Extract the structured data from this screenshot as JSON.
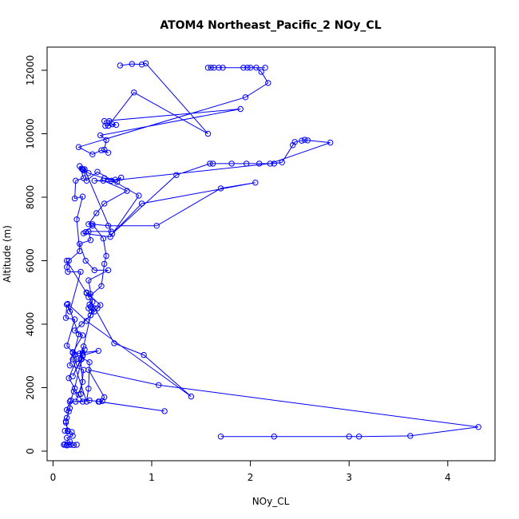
{
  "chart_data": {
    "type": "line",
    "title": "ATOM4 Northeast_Pacific_2 NOy_CL",
    "xlabel": "NOy_CL",
    "ylabel": "Altitude (m)",
    "xlim": [
      0,
      4.4
    ],
    "ylim": [
      0,
      12500
    ],
    "xticks": [
      0,
      1,
      2,
      3,
      4
    ],
    "yticks": [
      0,
      2000,
      4000,
      6000,
      8000,
      10000,
      12000
    ],
    "grid": false,
    "legend": "none",
    "color": "#0000ff",
    "marker": "open-circle",
    "series": [
      {
        "points": [
          [
            0.68,
            12150
          ],
          [
            0.8,
            12200
          ],
          [
            0.9,
            12180
          ],
          [
            0.94,
            12220
          ],
          [
            1.57,
            10000
          ],
          [
            0.82,
            11300
          ],
          [
            0.56,
            10250
          ],
          [
            0.57,
            10400
          ],
          [
            0.6,
            10300
          ],
          [
            0.64,
            10280
          ],
          [
            0.53,
            10250
          ],
          [
            0.52,
            10400
          ],
          [
            1.9,
            10780
          ],
          [
            0.48,
            9950
          ],
          [
            0.54,
            9800
          ],
          [
            0.52,
            9500
          ],
          [
            0.56,
            9400
          ],
          [
            0.49,
            9480
          ],
          [
            0.4,
            9350
          ],
          [
            0.26,
            9580
          ],
          [
            1.95,
            11150
          ],
          [
            2.18,
            11600
          ],
          [
            2.11,
            11950
          ],
          [
            2.06,
            12080
          ],
          [
            2.15,
            12080
          ],
          [
            2.0,
            12080
          ],
          [
            1.97,
            12080
          ],
          [
            1.93,
            12080
          ],
          [
            1.72,
            12080
          ],
          [
            1.68,
            12080
          ],
          [
            1.63,
            12080
          ],
          [
            1.6,
            12080
          ],
          [
            1.57,
            12080
          ]
        ]
      },
      {
        "points": [
          [
            0.52,
            8600
          ],
          [
            0.63,
            8550
          ],
          [
            0.69,
            8620
          ],
          [
            0.65,
            8480
          ],
          [
            0.42,
            8520
          ],
          [
            0.51,
            8520
          ],
          [
            0.75,
            8200
          ],
          [
            0.52,
            7800
          ],
          [
            0.44,
            7500
          ],
          [
            0.36,
            7150
          ],
          [
            0.4,
            7100
          ],
          [
            0.33,
            6900
          ],
          [
            0.31,
            6860
          ],
          [
            0.58,
            6750
          ],
          [
            0.87,
            8050
          ],
          [
            0.45,
            8800
          ],
          [
            0.34,
            8520
          ],
          [
            0.31,
            8850
          ],
          [
            0.29,
            8900
          ],
          [
            0.27,
            8980
          ],
          [
            0.31,
            8600
          ],
          [
            0.23,
            8520
          ],
          [
            0.22,
            7960
          ],
          [
            0.3,
            8020
          ],
          [
            0.24,
            7300
          ],
          [
            0.27,
            6300
          ],
          [
            0.16,
            6000
          ],
          [
            0.14,
            5800
          ],
          [
            0.15,
            5650
          ],
          [
            0.28,
            5650
          ],
          [
            0.17,
            4400
          ],
          [
            0.14,
            4620
          ],
          [
            0.13,
            4200
          ],
          [
            0.22,
            4150
          ],
          [
            0.14,
            3320
          ],
          [
            0.22,
            3050
          ],
          [
            0.24,
            2900
          ],
          [
            0.16,
            2300
          ],
          [
            0.22,
            1980
          ],
          [
            0.18,
            1600
          ],
          [
            0.17,
            1350
          ],
          [
            0.14,
            1050
          ],
          [
            0.13,
            940
          ],
          [
            0.15,
            650
          ],
          [
            0.12,
            640
          ],
          [
            0.19,
            600
          ],
          [
            0.2,
            480
          ],
          [
            0.14,
            420
          ],
          [
            0.17,
            300
          ],
          [
            0.18,
            200
          ],
          [
            0.14,
            180
          ],
          [
            0.12,
            220
          ],
          [
            0.11,
            200
          ],
          [
            0.14,
            190
          ],
          [
            0.16,
            200
          ],
          [
            0.21,
            190
          ],
          [
            0.24,
            200
          ]
        ]
      },
      {
        "points": [
          [
            1.7,
            460
          ],
          [
            2.24,
            460
          ],
          [
            3.0,
            460
          ],
          [
            3.1,
            460
          ],
          [
            3.62,
            480
          ],
          [
            4.31,
            760
          ],
          [
            1.07,
            2080
          ],
          [
            0.36,
            2560
          ],
          [
            0.52,
            1700
          ],
          [
            0.5,
            1580
          ],
          [
            0.46,
            1560
          ],
          [
            1.13,
            1260
          ],
          [
            0.47,
            1560
          ],
          [
            0.37,
            1600
          ],
          [
            0.23,
            1560
          ],
          [
            0.3,
            2180
          ],
          [
            0.28,
            2880
          ],
          [
            0.31,
            3300
          ],
          [
            0.39,
            4400
          ],
          [
            0.38,
            4550
          ],
          [
            0.36,
            4500
          ],
          [
            0.42,
            4400
          ],
          [
            0.45,
            4500
          ],
          [
            0.48,
            4600
          ],
          [
            0.34,
            5000
          ],
          [
            0.38,
            4950
          ],
          [
            0.36,
            4850
          ],
          [
            0.49,
            5200
          ],
          [
            0.52,
            5900
          ],
          [
            0.54,
            6150
          ],
          [
            0.51,
            6700
          ],
          [
            0.4,
            7150
          ],
          [
            0.56,
            7100
          ],
          [
            1.05,
            7100
          ],
          [
            1.7,
            8280
          ],
          [
            2.05,
            8460
          ],
          [
            0.9,
            7800
          ],
          [
            0.6,
            6850
          ],
          [
            1.25,
            8700
          ],
          [
            1.59,
            9060
          ],
          [
            1.62,
            9060
          ],
          [
            1.81,
            9060
          ],
          [
            1.96,
            9060
          ],
          [
            2.09,
            9060
          ],
          [
            2.24,
            9060
          ],
          [
            2.32,
            9100
          ],
          [
            2.43,
            9640
          ],
          [
            2.45,
            9740
          ],
          [
            2.52,
            9780
          ],
          [
            2.55,
            9810
          ],
          [
            2.58,
            9790
          ],
          [
            2.81,
            9720
          ],
          [
            2.2,
            9060
          ],
          [
            0.59,
            8520
          ],
          [
            0.36,
            8760
          ],
          [
            0.3,
            8880
          ],
          [
            0.32,
            8880
          ],
          [
            0.59,
            6920
          ],
          [
            0.36,
            6920
          ],
          [
            0.38,
            6650
          ],
          [
            0.27,
            6530
          ],
          [
            0.33,
            6000
          ],
          [
            0.42,
            5700
          ],
          [
            0.56,
            5700
          ],
          [
            0.36,
            5380
          ],
          [
            0.4,
            4700
          ],
          [
            0.37,
            4620
          ],
          [
            0.42,
            4500
          ],
          [
            0.38,
            4280
          ],
          [
            0.29,
            4000
          ],
          [
            0.22,
            3800
          ],
          [
            0.3,
            3650
          ],
          [
            0.2,
            3100
          ],
          [
            0.27,
            3080
          ],
          [
            0.32,
            3200
          ],
          [
            0.3,
            3100
          ],
          [
            0.46,
            3160
          ],
          [
            0.3,
            3020
          ],
          [
            0.2,
            2360
          ],
          [
            0.29,
            2900
          ],
          [
            0.26,
            2760
          ],
          [
            0.3,
            3000
          ],
          [
            0.21,
            1880
          ],
          [
            0.26,
            1780
          ],
          [
            0.3,
            1560
          ],
          [
            0.17,
            1560
          ],
          [
            0.14,
            1300
          ],
          [
            0.16,
            1250
          ],
          [
            0.13,
            900
          ],
          [
            0.15,
            620
          ]
        ]
      },
      {
        "points": [
          [
            0.14,
            6000
          ],
          [
            0.34,
            4980
          ],
          [
            0.62,
            3400
          ],
          [
            0.92,
            3030
          ],
          [
            1.4,
            1720
          ],
          [
            0.34,
            4100
          ],
          [
            0.15,
            4640
          ],
          [
            0.26,
            3680
          ],
          [
            0.2,
            2890
          ],
          [
            0.34,
            1560
          ],
          [
            0.36,
            1970
          ],
          [
            0.37,
            2800
          ],
          [
            0.2,
            3120
          ],
          [
            0.17,
            2700
          ],
          [
            0.31,
            2560
          ],
          [
            0.28,
            1800
          ]
        ]
      }
    ]
  }
}
